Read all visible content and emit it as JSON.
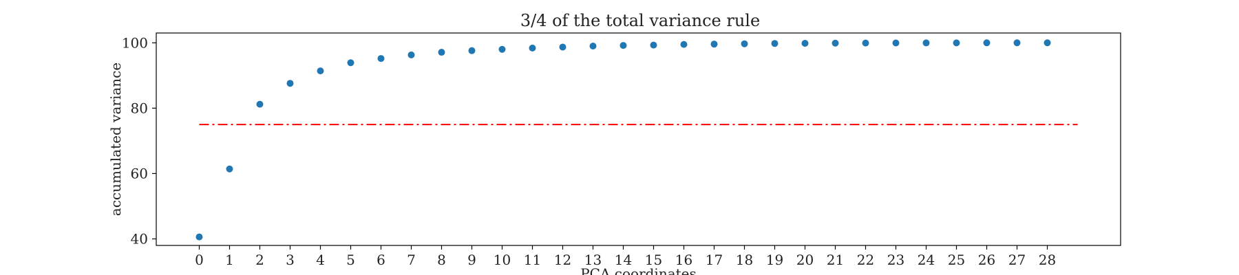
{
  "chart_data": {
    "type": "scatter",
    "title": "3/4 of the total variance rule",
    "xlabel": "PCA coordinates",
    "ylabel": "accumulated variance",
    "x": [
      0,
      1,
      2,
      3,
      4,
      5,
      6,
      7,
      8,
      9,
      10,
      11,
      12,
      13,
      14,
      15,
      16,
      17,
      18,
      19,
      20,
      21,
      22,
      23,
      24,
      25,
      26,
      27,
      28
    ],
    "y": [
      40.6,
      61.4,
      81.2,
      87.6,
      91.4,
      93.9,
      95.2,
      96.3,
      97.1,
      97.6,
      98.0,
      98.4,
      98.7,
      99.0,
      99.2,
      99.3,
      99.5,
      99.6,
      99.7,
      99.8,
      99.85,
      99.9,
      99.92,
      99.95,
      99.97,
      99.98,
      99.99,
      100.0,
      100.0
    ],
    "xticks": [
      0,
      1,
      2,
      3,
      4,
      5,
      6,
      7,
      8,
      9,
      10,
      11,
      12,
      13,
      14,
      15,
      16,
      17,
      18,
      19,
      20,
      21,
      22,
      23,
      24,
      25,
      26,
      27,
      28
    ],
    "yticks": [
      40,
      60,
      80,
      100
    ],
    "xlim": [
      -1.42,
      30.42
    ],
    "ylim": [
      38,
      103
    ],
    "threshold_line": {
      "y": 75,
      "x_start": 0,
      "x_end": 29,
      "color": "#ff0000",
      "style": "dash-dot"
    },
    "point_color": "#1f77b4",
    "grid": false,
    "legend": "none"
  }
}
